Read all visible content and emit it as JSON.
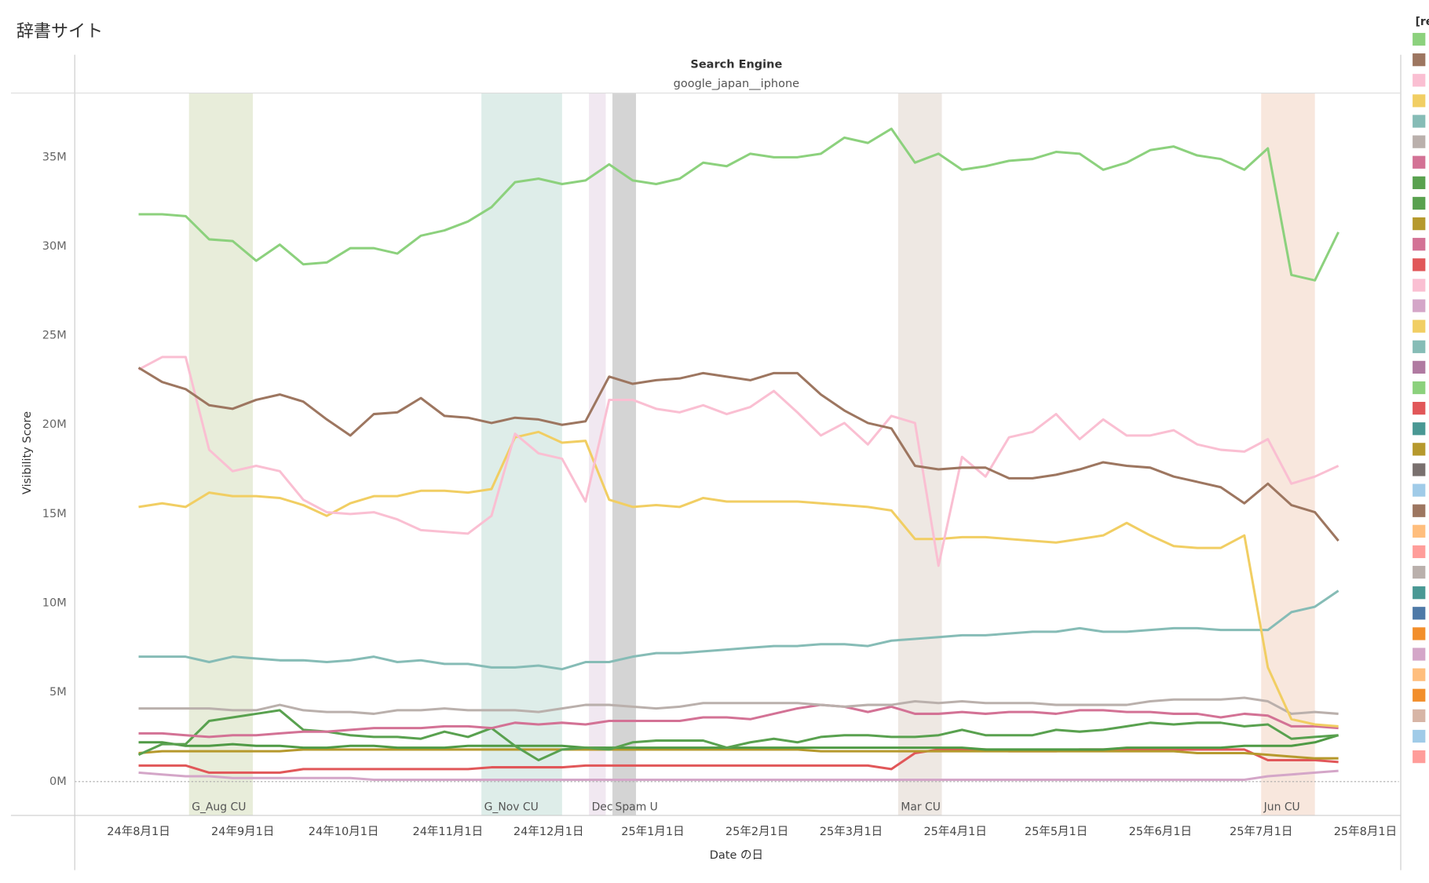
{
  "page_title": "辞書サイト",
  "legend": {
    "title": "[re",
    "colors": [
      "#8cd17d",
      "#9d7660",
      "#fabfd2",
      "#f1ce63",
      "#86bcb6",
      "#bab0ac",
      "#d37295",
      "#59a14f",
      "#59a14f",
      "#b6992d",
      "#d37295",
      "#e15759",
      "#fabfd2",
      "#d4a6c8",
      "#f1ce63",
      "#86bcb6",
      "#b07aa1",
      "#8cd17d",
      "#e15759",
      "#499894",
      "#b6992d",
      "#79706e",
      "#a0cbe8",
      "#9d7660",
      "#ffbe7d",
      "#ff9d9a",
      "#bab0ac",
      "#499894",
      "#4e79a7",
      "#f28e2b",
      "#d4a6c8",
      "#ffbe7d",
      "#f28e2b",
      "#d7b5a6",
      "#a0cbe8",
      "#ff9d9a"
    ]
  },
  "chart_data": {
    "type": "line",
    "header_title": "Search Engine",
    "header_value": "google_japan__iphone",
    "y_label": "Visibility Score",
    "x_label": "Date の日",
    "x": [
      "2024-08-01",
      "2024-08-08",
      "2024-08-15",
      "2024-08-22",
      "2024-08-29",
      "2024-09-05",
      "2024-09-12",
      "2024-09-19",
      "2024-09-26",
      "2024-10-03",
      "2024-10-10",
      "2024-10-17",
      "2024-10-24",
      "2024-10-31",
      "2024-11-07",
      "2024-11-14",
      "2024-11-21",
      "2024-11-28",
      "2024-12-05",
      "2024-12-12",
      "2024-12-19",
      "2024-12-26",
      "2025-01-02",
      "2025-01-09",
      "2025-01-16",
      "2025-01-23",
      "2025-01-30",
      "2025-02-06",
      "2025-02-13",
      "2025-02-20",
      "2025-02-27",
      "2025-03-06",
      "2025-03-13",
      "2025-03-20",
      "2025-03-27",
      "2025-04-03",
      "2025-04-10",
      "2025-04-17",
      "2025-04-24",
      "2025-05-01",
      "2025-05-08",
      "2025-05-15",
      "2025-05-22",
      "2025-05-29",
      "2025-06-05",
      "2025-06-12",
      "2025-06-19",
      "2025-06-26",
      "2025-07-03",
      "2025-07-10",
      "2025-07-17",
      "2025-07-24"
    ],
    "xlim": [
      "2024-07-13",
      "2025-08-11"
    ],
    "xticks": [
      {
        "value": "2024-08-01",
        "label": "24年8月1日"
      },
      {
        "value": "2024-09-01",
        "label": "24年9月1日"
      },
      {
        "value": "2024-10-01",
        "label": "24年10月1日"
      },
      {
        "value": "2024-11-01",
        "label": "24年11月1日"
      },
      {
        "value": "2024-12-01",
        "label": "24年12月1日"
      },
      {
        "value": "2025-01-01",
        "label": "25年1月1日"
      },
      {
        "value": "2025-02-01",
        "label": "25年2月1日"
      },
      {
        "value": "2025-03-01",
        "label": "25年3月1日"
      },
      {
        "value": "2025-04-01",
        "label": "25年4月1日"
      },
      {
        "value": "2025-05-01",
        "label": "25年5月1日"
      },
      {
        "value": "2025-06-01",
        "label": "25年6月1日"
      },
      {
        "value": "2025-07-01",
        "label": "25年7月1日"
      },
      {
        "value": "2025-08-01",
        "label": "25年8月1日"
      }
    ],
    "ylim": [
      -1.9,
      38.6
    ],
    "yticks": [
      {
        "value": 0,
        "label": "0M"
      },
      {
        "value": 5,
        "label": "5M"
      },
      {
        "value": 10,
        "label": "10M"
      },
      {
        "value": 15,
        "label": "15M"
      },
      {
        "value": 20,
        "label": "20M"
      },
      {
        "value": 25,
        "label": "25M"
      },
      {
        "value": 30,
        "label": "30M"
      },
      {
        "value": 35,
        "label": "35M"
      }
    ],
    "grid": false,
    "annotations": [
      {
        "label": "G_Aug CU",
        "start": "2024-08-16",
        "end": "2024-09-04",
        "color": "#e8edda"
      },
      {
        "label": "G_Nov CU",
        "start": "2024-11-11",
        "end": "2024-12-05",
        "color": "#deede9"
      },
      {
        "label": "Dec C",
        "start": "2024-12-13",
        "end": "2024-12-18",
        "color": "#f1e8f1"
      },
      {
        "label": "Spam U",
        "start": "2024-12-20",
        "end": "2024-12-27",
        "color": "#d4d4d4"
      },
      {
        "label": "Mar CU",
        "start": "2025-03-15",
        "end": "2025-03-28",
        "color": "#eee8e3"
      },
      {
        "label": "Jun CU",
        "start": "2025-07-01",
        "end": "2025-07-17",
        "color": "#f8e7dd"
      }
    ],
    "series": [
      {
        "color": "#8cd17d",
        "values": [
          31.8,
          31.8,
          31.7,
          30.4,
          30.3,
          29.2,
          30.1,
          29.0,
          29.1,
          29.9,
          29.9,
          29.6,
          30.6,
          30.9,
          31.4,
          32.2,
          33.6,
          33.8,
          33.5,
          33.7,
          34.6,
          33.7,
          33.5,
          33.8,
          34.7,
          34.5,
          35.2,
          35.0,
          35.0,
          35.2,
          36.1,
          35.8,
          36.6,
          34.7,
          35.2,
          34.3,
          34.5,
          34.8,
          34.9,
          35.3,
          35.2,
          34.3,
          34.7,
          35.4,
          35.6,
          35.1,
          34.9,
          34.3,
          35.5,
          28.4,
          28.1,
          30.8
        ]
      },
      {
        "color": "#9d7660",
        "values": [
          23.2,
          22.4,
          22.0,
          21.1,
          20.9,
          21.4,
          21.7,
          21.3,
          20.3,
          19.4,
          20.6,
          20.7,
          21.5,
          20.5,
          20.4,
          20.1,
          20.4,
          20.3,
          20.0,
          20.2,
          22.7,
          22.3,
          22.5,
          22.6,
          22.9,
          22.7,
          22.5,
          22.9,
          22.9,
          21.7,
          20.8,
          20.1,
          19.8,
          17.7,
          17.5,
          17.6,
          17.6,
          17.0,
          17.0,
          17.2,
          17.5,
          17.9,
          17.7,
          17.6,
          17.1,
          16.8,
          16.5,
          15.6,
          16.7,
          15.5,
          15.1,
          13.5
        ]
      },
      {
        "color": "#fabfd2",
        "values": [
          23.1,
          23.8,
          23.8,
          18.6,
          17.4,
          17.7,
          17.4,
          15.8,
          15.1,
          15.0,
          15.1,
          14.7,
          14.1,
          14.0,
          13.9,
          14.9,
          19.5,
          18.4,
          18.1,
          15.7,
          21.4,
          21.4,
          20.9,
          20.7,
          21.1,
          20.6,
          21.0,
          21.9,
          20.7,
          19.4,
          20.1,
          18.9,
          20.5,
          20.1,
          12.1,
          18.2,
          17.1,
          19.3,
          19.6,
          20.6,
          19.2,
          20.3,
          19.4,
          19.4,
          19.7,
          18.9,
          18.6,
          18.5,
          19.2,
          16.7,
          17.1,
          17.7
        ]
      },
      {
        "color": "#f1ce63",
        "values": [
          15.4,
          15.6,
          15.4,
          16.2,
          16.0,
          16.0,
          15.9,
          15.5,
          14.9,
          15.6,
          16.0,
          16.0,
          16.3,
          16.3,
          16.2,
          16.4,
          19.3,
          19.6,
          19.0,
          19.1,
          15.8,
          15.4,
          15.5,
          15.4,
          15.9,
          15.7,
          15.7,
          15.7,
          15.7,
          15.6,
          15.5,
          15.4,
          15.2,
          13.6,
          13.6,
          13.7,
          13.7,
          13.6,
          13.5,
          13.4,
          13.6,
          13.8,
          14.5,
          13.8,
          13.2,
          13.1,
          13.1,
          13.8,
          6.4,
          3.5,
          3.2,
          3.1
        ]
      },
      {
        "color": "#86bcb6",
        "values": [
          7.0,
          7.0,
          7.0,
          6.7,
          7.0,
          6.9,
          6.8,
          6.8,
          6.7,
          6.8,
          7.0,
          6.7,
          6.8,
          6.6,
          6.6,
          6.4,
          6.4,
          6.5,
          6.3,
          6.7,
          6.7,
          7.0,
          7.2,
          7.2,
          7.3,
          7.4,
          7.5,
          7.6,
          7.6,
          7.7,
          7.7,
          7.6,
          7.9,
          8.0,
          8.1,
          8.2,
          8.2,
          8.3,
          8.4,
          8.4,
          8.6,
          8.4,
          8.4,
          8.5,
          8.6,
          8.6,
          8.5,
          8.5,
          8.5,
          9.5,
          9.8,
          10.7
        ]
      },
      {
        "color": "#bab0ac",
        "values": [
          4.1,
          4.1,
          4.1,
          4.1,
          4.0,
          4.0,
          4.3,
          4.0,
          3.9,
          3.9,
          3.8,
          4.0,
          4.0,
          4.1,
          4.0,
          4.0,
          4.0,
          3.9,
          4.1,
          4.3,
          4.3,
          4.2,
          4.1,
          4.2,
          4.4,
          4.4,
          4.4,
          4.4,
          4.4,
          4.3,
          4.2,
          4.3,
          4.3,
          4.5,
          4.4,
          4.5,
          4.4,
          4.4,
          4.4,
          4.3,
          4.3,
          4.3,
          4.3,
          4.5,
          4.6,
          4.6,
          4.6,
          4.7,
          4.5,
          3.8,
          3.9,
          3.8
        ]
      },
      {
        "color": "#d37295",
        "values": [
          2.7,
          2.7,
          2.6,
          2.5,
          2.6,
          2.6,
          2.7,
          2.8,
          2.8,
          2.9,
          3.0,
          3.0,
          3.0,
          3.1,
          3.1,
          3.0,
          3.3,
          3.2,
          3.3,
          3.2,
          3.4,
          3.4,
          3.4,
          3.4,
          3.6,
          3.6,
          3.5,
          3.8,
          4.1,
          4.3,
          4.2,
          3.9,
          4.2,
          3.8,
          3.8,
          3.9,
          3.8,
          3.9,
          3.9,
          3.8,
          4.0,
          4.0,
          3.9,
          3.9,
          3.8,
          3.8,
          3.6,
          3.8,
          3.7,
          3.1,
          3.1,
          3.0
        ]
      },
      {
        "color": "#59a14f",
        "values": [
          1.5,
          2.1,
          2.1,
          3.4,
          3.6,
          3.8,
          4.0,
          2.9,
          2.8,
          2.6,
          2.5,
          2.5,
          2.4,
          2.8,
          2.5,
          3.0,
          2.0,
          1.2,
          1.8,
          1.9,
          1.8,
          2.2,
          2.3,
          2.3,
          2.3,
          1.9,
          2.2,
          2.4,
          2.2,
          2.5,
          2.6,
          2.6,
          2.5,
          2.5,
          2.6,
          2.9,
          2.6,
          2.6,
          2.6,
          2.9,
          2.8,
          2.9,
          3.1,
          3.3,
          3.2,
          3.3,
          3.3,
          3.1,
          3.2,
          2.4,
          2.5,
          2.6
        ]
      },
      {
        "color": "#4f9a45",
        "values": [
          2.2,
          2.2,
          2.0,
          2.0,
          2.1,
          2.0,
          2.0,
          1.9,
          1.9,
          2.0,
          2.0,
          1.9,
          1.9,
          1.9,
          2.0,
          2.0,
          2.0,
          2.0,
          2.0,
          1.9,
          1.9,
          1.9,
          1.9,
          1.9,
          1.9,
          1.9,
          1.9,
          1.9,
          1.9,
          1.9,
          1.9,
          1.9,
          1.9,
          1.9,
          1.9,
          1.9,
          1.8,
          1.8,
          1.8,
          1.8,
          1.8,
          1.8,
          1.9,
          1.9,
          1.9,
          1.9,
          1.9,
          2.0,
          2.0,
          2.0,
          2.2,
          2.6
        ]
      },
      {
        "color": "#b6992d",
        "values": [
          1.6,
          1.7,
          1.7,
          1.7,
          1.7,
          1.7,
          1.7,
          1.8,
          1.8,
          1.8,
          1.8,
          1.8,
          1.8,
          1.8,
          1.8,
          1.8,
          1.8,
          1.8,
          1.8,
          1.8,
          1.8,
          1.8,
          1.8,
          1.8,
          1.8,
          1.8,
          1.8,
          1.8,
          1.8,
          1.7,
          1.7,
          1.7,
          1.7,
          1.7,
          1.7,
          1.7,
          1.7,
          1.7,
          1.7,
          1.7,
          1.7,
          1.7,
          1.7,
          1.7,
          1.7,
          1.6,
          1.6,
          1.6,
          1.5,
          1.4,
          1.3,
          1.3
        ]
      },
      {
        "color": "#e15759",
        "values": [
          0.9,
          0.9,
          0.9,
          0.5,
          0.5,
          0.5,
          0.5,
          0.7,
          0.7,
          0.7,
          0.7,
          0.7,
          0.7,
          0.7,
          0.7,
          0.8,
          0.8,
          0.8,
          0.8,
          0.9,
          0.9,
          0.9,
          0.9,
          0.9,
          0.9,
          0.9,
          0.9,
          0.9,
          0.9,
          0.9,
          0.9,
          0.9,
          0.7,
          1.6,
          1.8,
          1.8,
          1.8,
          1.7,
          1.7,
          1.7,
          1.8,
          1.8,
          1.8,
          1.8,
          1.8,
          1.8,
          1.8,
          1.8,
          1.2,
          1.2,
          1.2,
          1.1
        ]
      },
      {
        "color": "#d4a6c8",
        "values": [
          0.5,
          0.4,
          0.3,
          0.3,
          0.2,
          0.2,
          0.2,
          0.2,
          0.2,
          0.2,
          0.1,
          0.1,
          0.1,
          0.1,
          0.1,
          0.1,
          0.1,
          0.1,
          0.1,
          0.1,
          0.1,
          0.1,
          0.1,
          0.1,
          0.1,
          0.1,
          0.1,
          0.1,
          0.1,
          0.1,
          0.1,
          0.1,
          0.1,
          0.1,
          0.1,
          0.1,
          0.1,
          0.1,
          0.1,
          0.1,
          0.1,
          0.1,
          0.1,
          0.1,
          0.1,
          0.1,
          0.1,
          0.1,
          0.3,
          0.4,
          0.5,
          0.6
        ]
      }
    ]
  }
}
